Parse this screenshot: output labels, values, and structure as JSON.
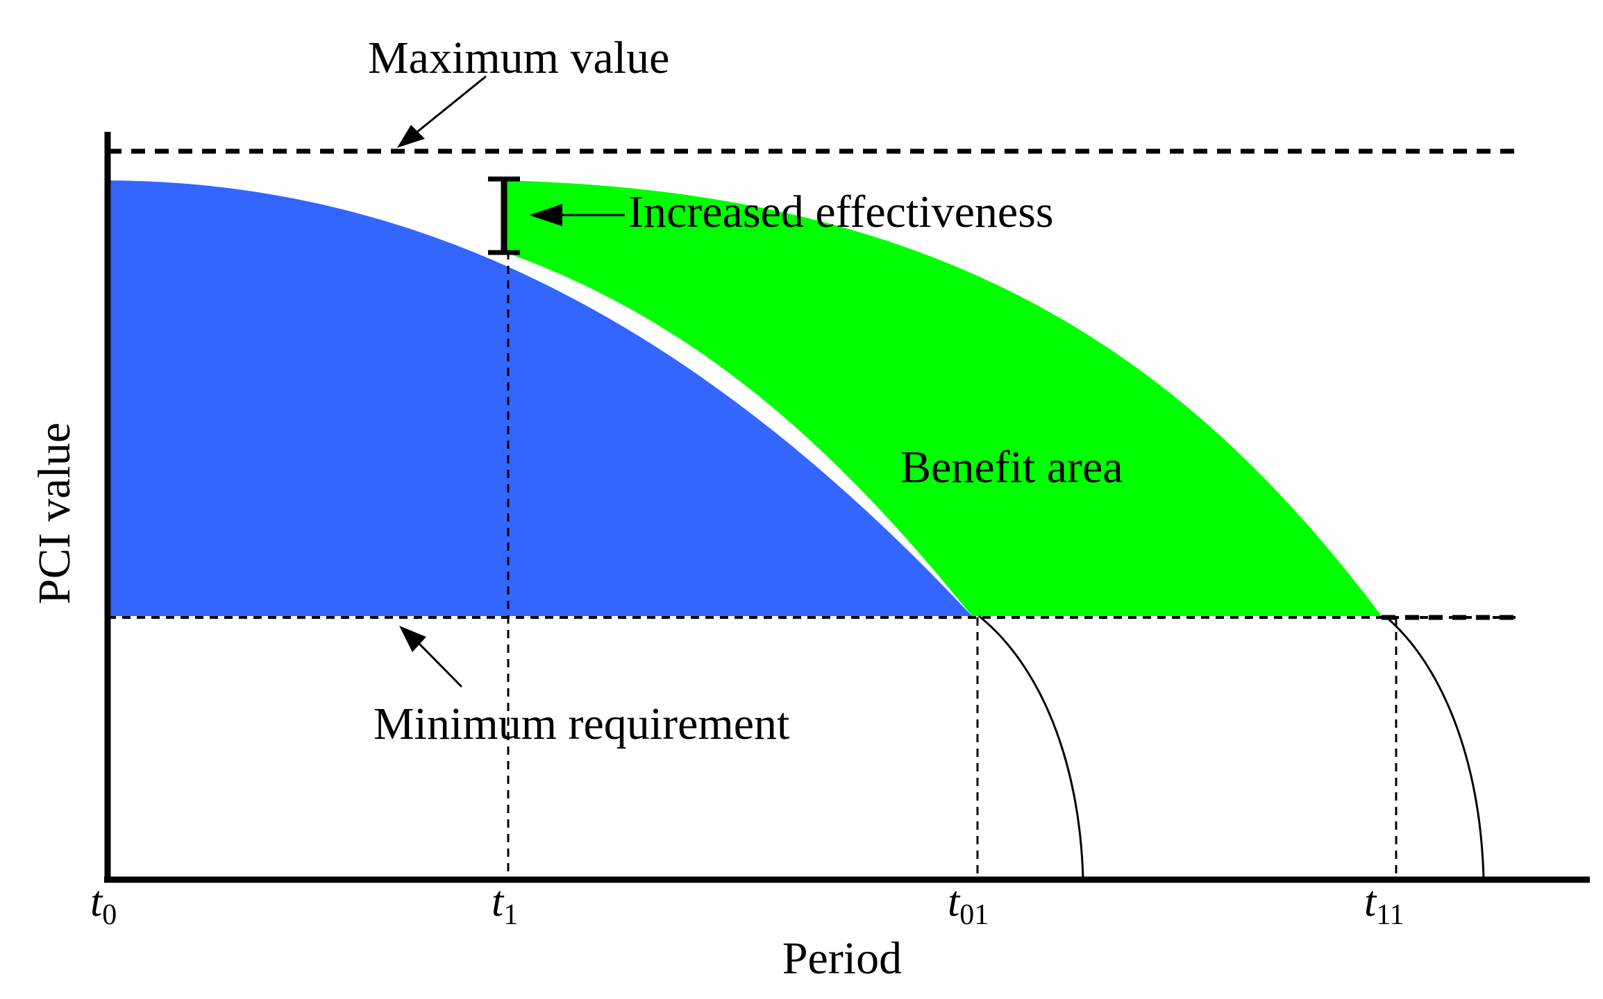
{
  "labels": {
    "maximum": "Maximum value",
    "minimum": "Minimum requirement",
    "effectiveness": "Increased effectiveness",
    "benefit": "Benefit area",
    "y_axis": "PCI value",
    "x_axis": "Period"
  },
  "ticks": [
    {
      "base": "t",
      "sub": "0"
    },
    {
      "base": "t",
      "sub": "1"
    },
    {
      "base": "t",
      "sub": "01"
    },
    {
      "base": "t",
      "sub": "11"
    }
  ],
  "colors": {
    "baseline_area": "#3366ff",
    "benefit_area": "#00ff00",
    "lines": "#000000"
  }
}
